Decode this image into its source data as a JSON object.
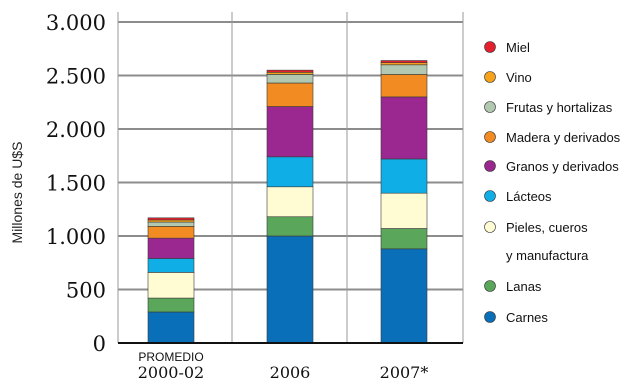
{
  "chart_data": {
    "type": "bar",
    "stacked": true,
    "title": "",
    "xlabel": "",
    "ylabel": "Millones de U$S",
    "ylim": [
      0,
      3000
    ],
    "yticks": [
      0,
      500,
      1000,
      1500,
      2000,
      2500,
      3000
    ],
    "ytick_labels": [
      "0",
      "500",
      "1.000",
      "1.500",
      "2.000",
      "2.500",
      "3.000"
    ],
    "categories": [
      {
        "sub": "PROMEDIO",
        "main": "2000-02"
      },
      {
        "sub": "",
        "main": "2006"
      },
      {
        "sub": "",
        "main": "2007*"
      }
    ],
    "grid": true,
    "legend_position": "right",
    "series": [
      {
        "name": "Carnes",
        "color": "#0a6fb9",
        "values": [
          290,
          1000,
          880
        ]
      },
      {
        "name": "Lanas",
        "color": "#5aa65a",
        "values": [
          130,
          180,
          190
        ]
      },
      {
        "name": "Pieles, cueros y manufactura",
        "legend_lines": [
          "Pieles, cueros",
          "y manufactura"
        ],
        "color": "#fffbd2",
        "values": [
          240,
          280,
          330
        ]
      },
      {
        "name": "Lácteos",
        "color": "#0faee6",
        "values": [
          130,
          280,
          320
        ]
      },
      {
        "name": "Granos y derivados",
        "color": "#9b2790",
        "values": [
          190,
          470,
          580
        ]
      },
      {
        "name": "Madera y derivados",
        "color": "#f18b22",
        "values": [
          110,
          220,
          210
        ]
      },
      {
        "name": "Frutas y hortalizas",
        "color": "#b2c8b0",
        "values": [
          40,
          80,
          90
        ]
      },
      {
        "name": "Vino",
        "color": "#f7a21b",
        "values": [
          20,
          20,
          20
        ]
      },
      {
        "name": "Miel",
        "color": "#e5202e",
        "values": [
          20,
          20,
          20
        ]
      }
    ]
  }
}
